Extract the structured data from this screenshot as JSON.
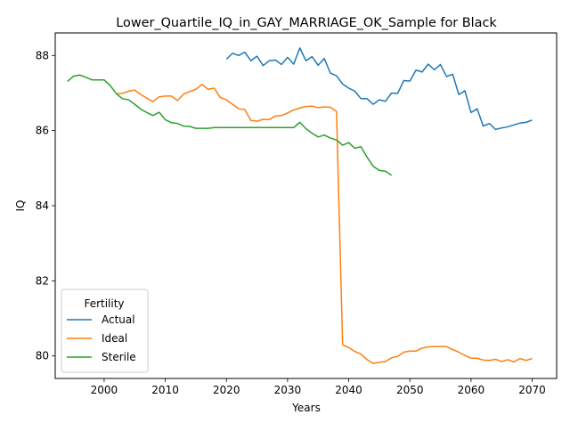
{
  "chart_data": {
    "type": "line",
    "title": "Lower_Quartile_IQ_in_GAY_MARRIAGE_OK_Sample for Black",
    "xlabel": "Years",
    "ylabel": "IQ",
    "xlim": [
      1992,
      2074
    ],
    "ylim": [
      79.4,
      88.6
    ],
    "xticks": [
      2000,
      2010,
      2020,
      2030,
      2040,
      2050,
      2060,
      2070
    ],
    "yticks": [
      80,
      82,
      84,
      86,
      88
    ],
    "grid": false,
    "legend": {
      "title": "Fertility",
      "placement": "lower-left"
    },
    "series": [
      {
        "name": "Actual",
        "color": "#1f77b4",
        "x": [
          2020,
          2021,
          2022,
          2023,
          2024,
          2025,
          2026,
          2027,
          2028,
          2029,
          2030,
          2031,
          2032,
          2033,
          2034,
          2035,
          2036,
          2037,
          2038,
          2039,
          2040,
          2041,
          2042,
          2043,
          2044,
          2045,
          2046,
          2047,
          2048,
          2049,
          2050,
          2051,
          2052,
          2053,
          2054,
          2055,
          2056,
          2057,
          2058,
          2059,
          2060,
          2061,
          2062,
          2063,
          2064,
          2065,
          2066,
          2067,
          2068,
          2069,
          2070
        ],
        "y": [
          87.9,
          88.06,
          88.0,
          88.09,
          87.86,
          87.98,
          87.73,
          87.86,
          87.88,
          87.76,
          87.95,
          87.77,
          88.2,
          87.86,
          87.97,
          87.74,
          87.92,
          87.53,
          87.46,
          87.24,
          87.13,
          87.05,
          86.85,
          86.85,
          86.7,
          86.82,
          86.78,
          87.0,
          86.99,
          87.33,
          87.32,
          87.61,
          87.56,
          87.77,
          87.62,
          87.76,
          87.44,
          87.5,
          86.96,
          87.06,
          86.48,
          86.58,
          86.12,
          86.19,
          86.03,
          86.07,
          86.1,
          86.15,
          86.2,
          86.22,
          86.28
        ]
      },
      {
        "name": "Ideal",
        "color": "#ff7f0e",
        "x": [
          2002,
          2003,
          2004,
          2005,
          2006,
          2007,
          2008,
          2009,
          2010,
          2011,
          2012,
          2013,
          2014,
          2015,
          2016,
          2017,
          2018,
          2019,
          2020,
          2021,
          2022,
          2023,
          2024,
          2025,
          2026,
          2027,
          2028,
          2029,
          2030,
          2031,
          2032,
          2033,
          2034,
          2035,
          2036,
          2037,
          2038,
          2039,
          2040,
          2041,
          2042,
          2043,
          2044,
          2045,
          2046,
          2047,
          2048,
          2049,
          2050,
          2051,
          2052,
          2053,
          2054,
          2055,
          2056,
          2057,
          2058,
          2059,
          2060,
          2061,
          2062,
          2063,
          2064,
          2065,
          2066,
          2067,
          2068,
          2069,
          2070
        ],
        "y": [
          86.98,
          86.99,
          87.05,
          87.08,
          86.96,
          86.86,
          86.77,
          86.9,
          86.92,
          86.92,
          86.8,
          86.97,
          87.04,
          87.1,
          87.23,
          87.1,
          87.13,
          86.88,
          86.82,
          86.7,
          86.58,
          86.56,
          86.27,
          86.25,
          86.3,
          86.29,
          86.39,
          86.4,
          86.47,
          86.55,
          86.6,
          86.64,
          86.65,
          86.61,
          86.63,
          86.62,
          86.51,
          80.3,
          80.22,
          80.12,
          80.05,
          79.9,
          79.8,
          79.83,
          79.85,
          79.95,
          79.99,
          80.1,
          80.13,
          80.13,
          80.21,
          80.24,
          80.25,
          80.25,
          80.25,
          80.17,
          80.1,
          80.01,
          79.94,
          79.94,
          79.89,
          79.88,
          79.91,
          79.85,
          79.9,
          79.84,
          79.93,
          79.88,
          79.93
        ]
      },
      {
        "name": "Sterile",
        "color": "#2ca02c",
        "x": [
          1994,
          1995,
          1996,
          1997,
          1998,
          1999,
          2000,
          2001,
          2002,
          2003,
          2004,
          2005,
          2006,
          2007,
          2008,
          2009,
          2010,
          2011,
          2012,
          2013,
          2014,
          2015,
          2016,
          2017,
          2018,
          2019,
          2020,
          2021,
          2022,
          2023,
          2024,
          2025,
          2026,
          2027,
          2028,
          2029,
          2030,
          2031,
          2032,
          2033,
          2034,
          2035,
          2036,
          2037,
          2038,
          2039,
          2040,
          2041,
          2042,
          2043,
          2044,
          2045,
          2046,
          2047
        ],
        "y": [
          87.31,
          87.45,
          87.48,
          87.42,
          87.35,
          87.35,
          87.35,
          87.2,
          86.98,
          86.85,
          86.82,
          86.7,
          86.57,
          86.48,
          86.4,
          86.49,
          86.29,
          86.21,
          86.19,
          86.12,
          86.11,
          86.06,
          86.06,
          86.06,
          86.08,
          86.08,
          86.08,
          86.08,
          86.08,
          86.08,
          86.08,
          86.08,
          86.08,
          86.08,
          86.08,
          86.08,
          86.08,
          86.08,
          86.22,
          86.05,
          85.93,
          85.83,
          85.88,
          85.8,
          85.75,
          85.61,
          85.68,
          85.53,
          85.57,
          85.29,
          85.05,
          84.94,
          84.92,
          84.81
        ]
      }
    ]
  }
}
